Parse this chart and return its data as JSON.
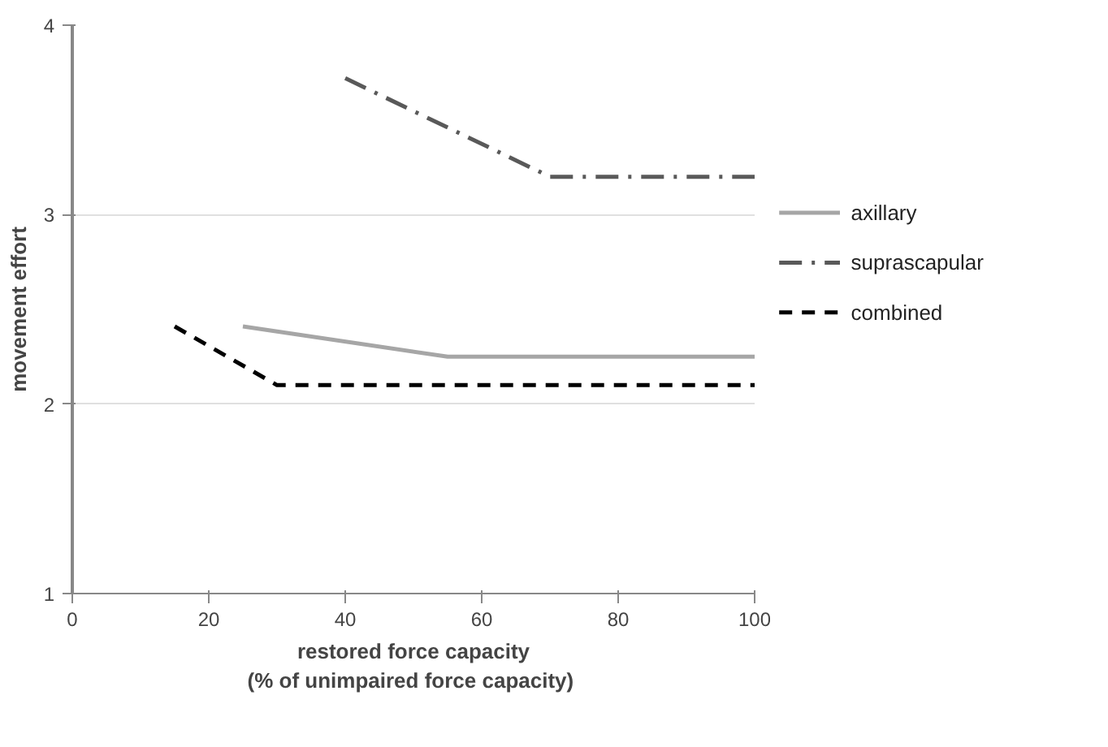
{
  "chart_data": {
    "type": "line",
    "xlabel": "restored force capacity\n(%  of unimpaired force capacity)",
    "ylabel": "movement effort",
    "xlim": [
      0,
      100
    ],
    "xticks": [
      0,
      20,
      40,
      60,
      80,
      100
    ],
    "ylim": [
      1,
      4
    ],
    "yticks": [
      1,
      2,
      3,
      4
    ],
    "grid": "y",
    "legend": "right",
    "series": [
      {
        "name": "axillary",
        "color": "#a6a6a6",
        "x": [
          25,
          55,
          100
        ],
        "values": [
          2.41,
          2.25,
          2.25
        ],
        "line_style": "solid"
      },
      {
        "name": "suprascapular",
        "color": "#595959",
        "x": [
          40,
          70,
          100
        ],
        "values": [
          3.72,
          3.2,
          3.2
        ],
        "line_style": "dashdot"
      },
      {
        "name": "combined",
        "color": "#000000",
        "x": [
          15,
          30,
          100
        ],
        "values": [
          2.41,
          2.1,
          2.1
        ],
        "line_style": "dashed"
      }
    ]
  }
}
